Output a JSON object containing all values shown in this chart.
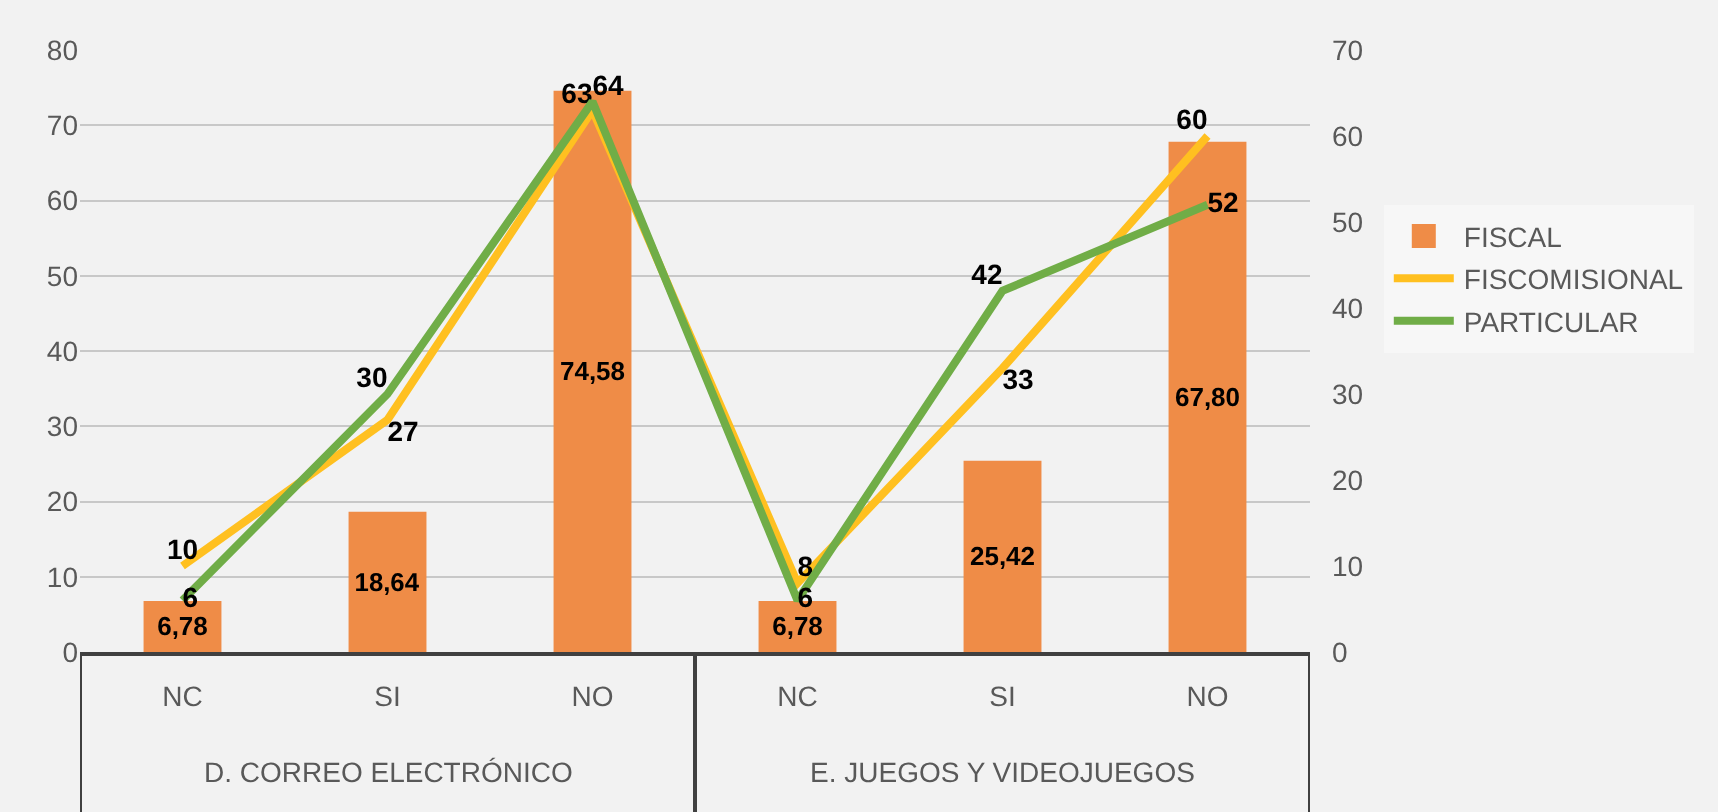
{
  "chart_data": {
    "type": "bar",
    "categories": [
      "NC",
      "SI",
      "NO",
      "NC",
      "SI",
      "NO"
    ],
    "annotations": [
      "D. CORREO ELECTRÓNICO",
      "E. JUEGOS Y VIDEOJUEGOS"
    ],
    "series": [
      {
        "name": "FISCAL",
        "color": "#ef8c47",
        "values": [
          6.78,
          18.64,
          74.58,
          6.78,
          25.42,
          67.8
        ],
        "value_labels": [
          "6,78",
          "18,64",
          "74,58",
          "6,78",
          "25,42",
          "67,80"
        ]
      },
      {
        "name": "FISCOMISIONAL",
        "type": "line",
        "axis": "y2",
        "color": "#ffc020",
        "values": [
          10,
          27,
          63,
          8,
          33,
          60
        ],
        "value_labels": [
          "10",
          "27",
          "63",
          "8",
          "33",
          "60"
        ]
      },
      {
        "name": "PARTICULAR",
        "type": "line",
        "axis": "y2",
        "color": "#70ad47",
        "values": [
          6,
          30,
          64,
          6,
          42,
          52
        ],
        "value_labels": [
          "6",
          "30",
          "64",
          "6",
          "42",
          "52"
        ]
      }
    ],
    "ylim": [
      0,
      80
    ],
    "yticks": [
      0,
      10,
      20,
      30,
      40,
      50,
      60,
      70,
      80
    ],
    "y2lim": [
      0,
      70
    ],
    "y2ticks": [
      0,
      10,
      20,
      30,
      40,
      50,
      60,
      70
    ],
    "grid": "y",
    "legend": "right",
    "line_style": "solid",
    "marker": "none"
  }
}
